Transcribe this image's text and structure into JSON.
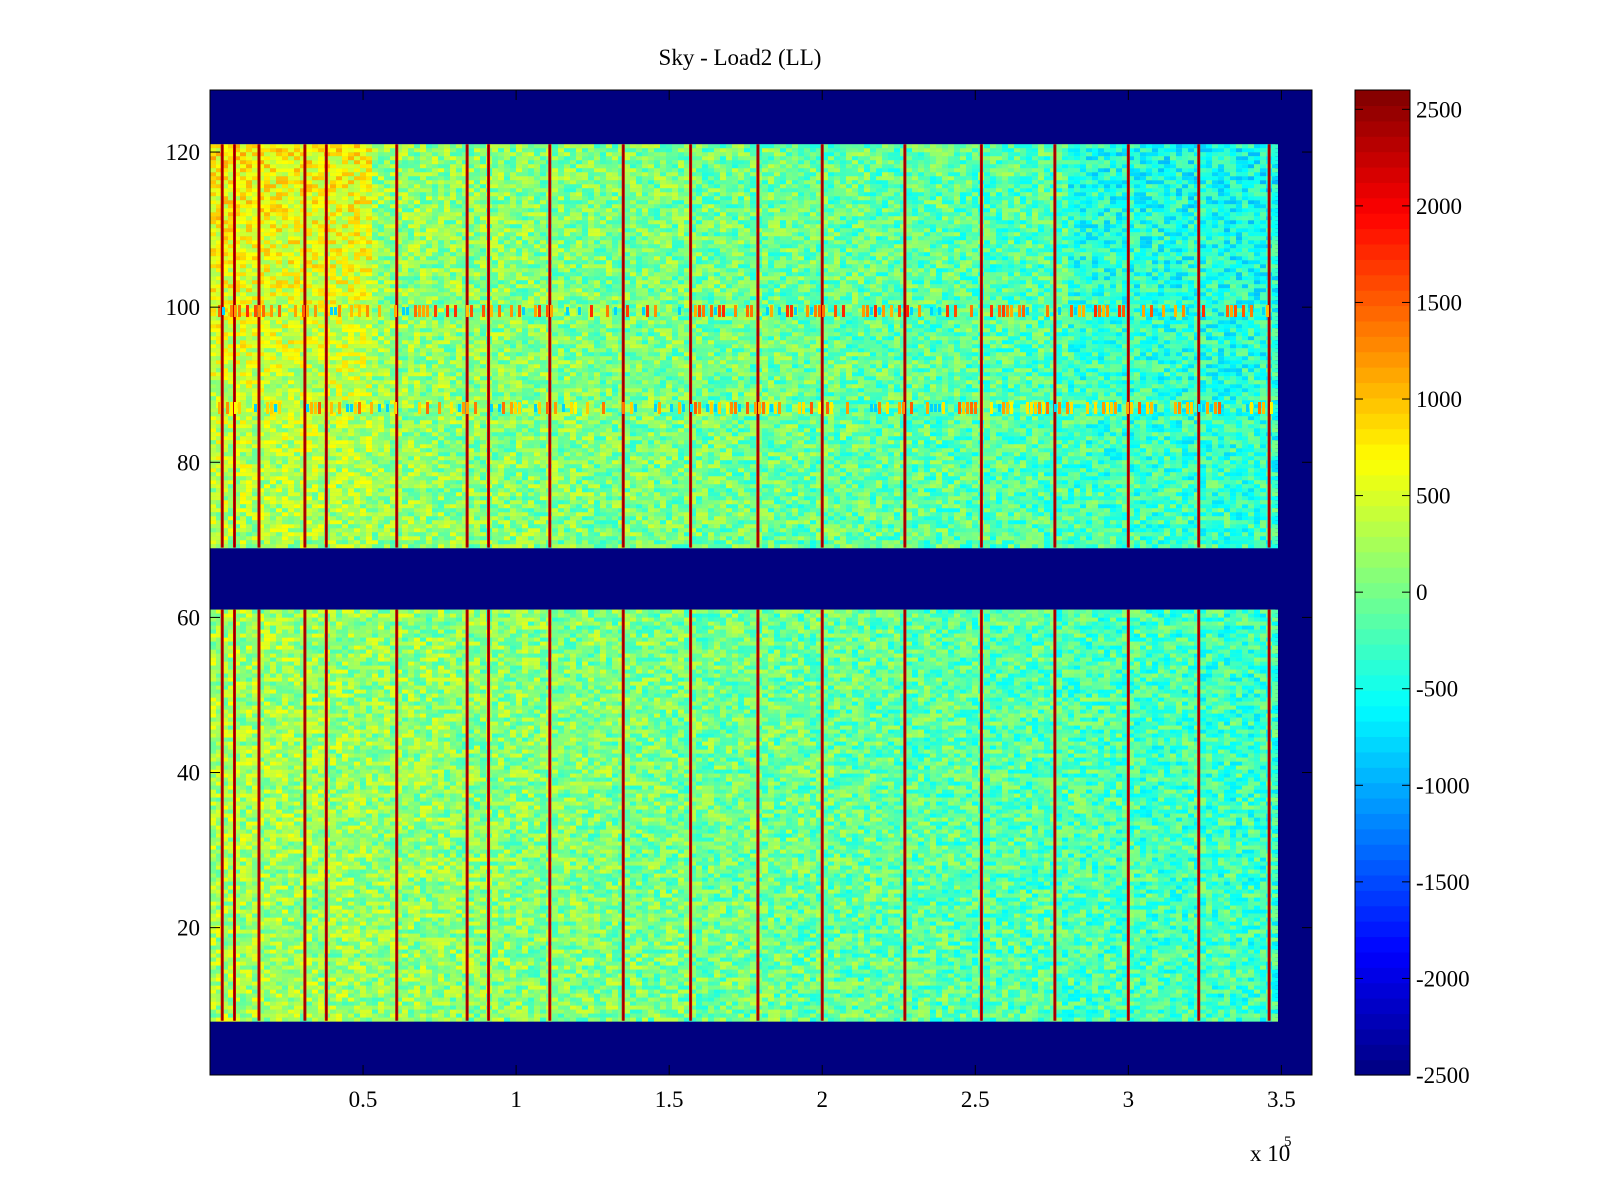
{
  "chart_data": {
    "type": "heatmap",
    "title": "Sky - Load2 (LL)",
    "xlabel": "",
    "ylabel": "",
    "x_exponent_label": "x 10",
    "x_exponent": "5",
    "xlim": [
      0,
      3.6
    ],
    "ylim": [
      1,
      128
    ],
    "x_ticks": [
      {
        "value": 0.5,
        "label": "0.5"
      },
      {
        "value": 1,
        "label": "1"
      },
      {
        "value": 1.5,
        "label": "1.5"
      },
      {
        "value": 2,
        "label": "2"
      },
      {
        "value": 2.5,
        "label": "2.5"
      },
      {
        "value": 3,
        "label": "3"
      },
      {
        "value": 3.5,
        "label": "3.5"
      }
    ],
    "y_ticks": [
      {
        "value": 20,
        "label": "20"
      },
      {
        "value": 40,
        "label": "40"
      },
      {
        "value": 60,
        "label": "60"
      },
      {
        "value": 80,
        "label": "80"
      },
      {
        "value": 100,
        "label": "100"
      },
      {
        "value": 120,
        "label": "120"
      }
    ],
    "colorbar": {
      "range": [
        -2500,
        2600
      ],
      "ticks": [
        {
          "value": 2500,
          "label": "2500"
        },
        {
          "value": 2000,
          "label": "2000"
        },
        {
          "value": 1500,
          "label": "1500"
        },
        {
          "value": 1000,
          "label": "1000"
        },
        {
          "value": 500,
          "label": "500"
        },
        {
          "value": 0,
          "label": "0"
        },
        {
          "value": -500,
          "label": "-500"
        },
        {
          "value": -1000,
          "label": "-1000"
        },
        {
          "value": -1500,
          "label": "-1500"
        },
        {
          "value": -2000,
          "label": "-2000"
        },
        {
          "value": -2500,
          "label": "-2500"
        }
      ],
      "colormap": "jet"
    },
    "data_bands": [
      {
        "y_start": 69,
        "y_end": 121
      },
      {
        "y_start": 8,
        "y_end": 61
      }
    ],
    "data_x_end": 3.48,
    "background_value": -2500,
    "typical_value": 0,
    "stripe_x_positions": [
      0.04,
      0.08,
      0.16,
      0.31,
      0.38,
      0.61,
      0.84,
      0.91,
      1.11,
      1.35,
      1.57,
      1.79,
      2.0,
      2.27,
      2.52,
      2.76,
      3.0,
      3.23,
      3.46
    ],
    "stripe_value": 2200,
    "feature_rows": [
      {
        "y": 99.5,
        "value": 1800
      },
      {
        "y": 87,
        "value": 1500
      }
    ],
    "grid": false,
    "colors": {
      "background": "#000080",
      "jet_dark_red": "#800000"
    }
  }
}
